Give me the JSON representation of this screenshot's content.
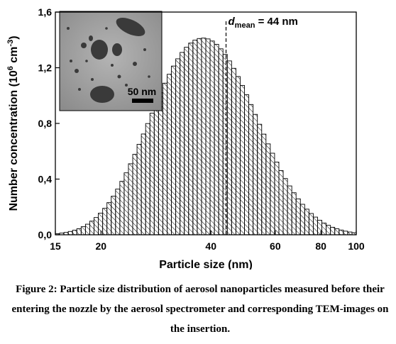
{
  "chart_data": {
    "type": "bar",
    "x_scale": "log",
    "xlabel": "Particle size (nm)",
    "ylabel": "Number concentration (10^6 cm^-3)",
    "ylabel_parts": {
      "main": "Number concentration (10",
      "sup1": "6",
      "mid": " cm",
      "sup2": "-3",
      "end": ")"
    },
    "xlim": [
      15,
      100
    ],
    "ylim": [
      0,
      1.6
    ],
    "x_ticks": [
      {
        "value": 15,
        "label": "15"
      },
      {
        "value": 20,
        "label": "20"
      },
      {
        "value": 40,
        "label": "40"
      },
      {
        "value": 60,
        "label": "60"
      },
      {
        "value": 80,
        "label": "80"
      },
      {
        "value": 100,
        "label": "100"
      }
    ],
    "y_ticks": [
      {
        "value": 0,
        "label": "0,0"
      },
      {
        "value": 0.4,
        "label": "0,4"
      },
      {
        "value": 0.8,
        "label": "0,8"
      },
      {
        "value": 1.2,
        "label": "1,2"
      },
      {
        "value": 1.6,
        "label": "1,6"
      }
    ],
    "bins_min": 15,
    "bins_max": 100,
    "values": [
      0.008,
      0.012,
      0.017,
      0.024,
      0.033,
      0.044,
      0.058,
      0.076,
      0.098,
      0.124,
      0.155,
      0.19,
      0.231,
      0.277,
      0.328,
      0.384,
      0.445,
      0.51,
      0.578,
      0.65,
      0.724,
      0.799,
      0.874,
      0.948,
      1.02,
      1.089,
      1.153,
      1.212,
      1.264,
      1.31,
      1.347,
      1.377,
      1.398,
      1.41,
      1.413,
      1.407,
      1.392,
      1.368,
      1.336,
      1.296,
      1.249,
      1.196,
      1.137,
      1.073,
      1.006,
      0.936,
      0.865,
      0.794,
      0.723,
      0.653,
      0.586,
      0.522,
      0.461,
      0.404,
      0.351,
      0.302,
      0.258,
      0.219,
      0.184,
      0.153,
      0.127,
      0.104,
      0.084,
      0.068,
      0.054,
      0.043,
      0.034,
      0.026,
      0.02,
      0.015
    ],
    "mean_line": {
      "x": 44,
      "label_italic": "d",
      "label_sub": "mean",
      "label_rest": " = 44 nm"
    },
    "inset": {
      "scale_label": "50 nm"
    }
  },
  "caption": "Figure 2: Particle size distribution of aerosol nanoparticles measured before their entering the nozzle by the aerosol spectrometer and corresponding TEM-images on the insertion."
}
